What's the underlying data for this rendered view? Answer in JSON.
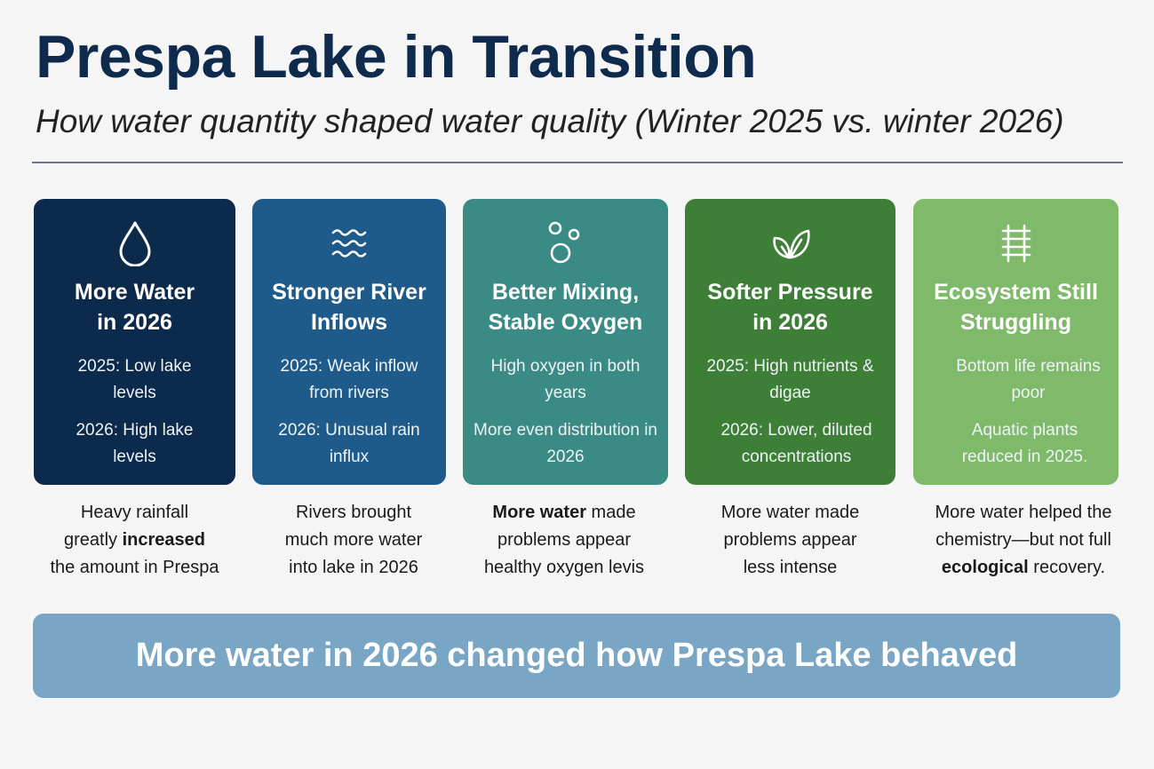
{
  "header": {
    "title": "Prespa Lake in Transition",
    "subtitle": "How water quantity shaped water quality (Winter 2025 vs. winter 2026)"
  },
  "cards": [
    {
      "icon": "water-drop-icon",
      "color": "#0b2a4c",
      "title_line1": "More Water",
      "title_line2": "in 2026",
      "line1": "2025: Low lake levels",
      "line2": "2026: High lake levels",
      "caption_a": "Heavy rainfall",
      "caption_b1": "greatly ",
      "caption_b2": "increased",
      "caption_c": "the amount in Prespa"
    },
    {
      "icon": "waves-icon",
      "color": "#1f5b8a",
      "title_line1": "Stronger River",
      "title_line2": "Inflows",
      "line1": "2025: Weak inflow from rivers",
      "line2": "2026: Unusual rain influx",
      "caption_a": "Rivers brought",
      "caption_b": "much more water",
      "caption_c": "into lake in 2026"
    },
    {
      "icon": "bubbles-icon",
      "color": "#3a8a85",
      "title_line1": "Better Mixing,",
      "title_line2": "Stable Oxygen",
      "line1": "High oxygen in both years",
      "line2": "More even distribution in 2026",
      "caption_a1": "More water",
      "caption_a2": " made",
      "caption_b": "problems appear",
      "caption_c": "healthy oxygen levis"
    },
    {
      "icon": "leaf-icon",
      "color": "#3e7f37",
      "title_line1": "Softer Pressure",
      "title_line2": "in 2026",
      "line1": "2025: High nutrients & digae",
      "line2": "2026: Lower, diluted concentrations",
      "caption_a": "More water made",
      "caption_b": "problems appear",
      "caption_c": "less intense"
    },
    {
      "icon": "ladder-icon",
      "color": "#7fb96a",
      "title_line1": "Ecosystem Still",
      "title_line2": "Struggling",
      "line1": "Bottom life remains poor",
      "line2": "Aquatic plants reduced in 2025.",
      "caption_a": "More water helped the",
      "caption_b": "chemistry—but not full",
      "caption_c1": "ecological",
      "caption_c2": " recovery."
    }
  ],
  "banner": {
    "text": "More water in 2026 changed how Prespa Lake behaved",
    "color": "#79a6c4"
  }
}
